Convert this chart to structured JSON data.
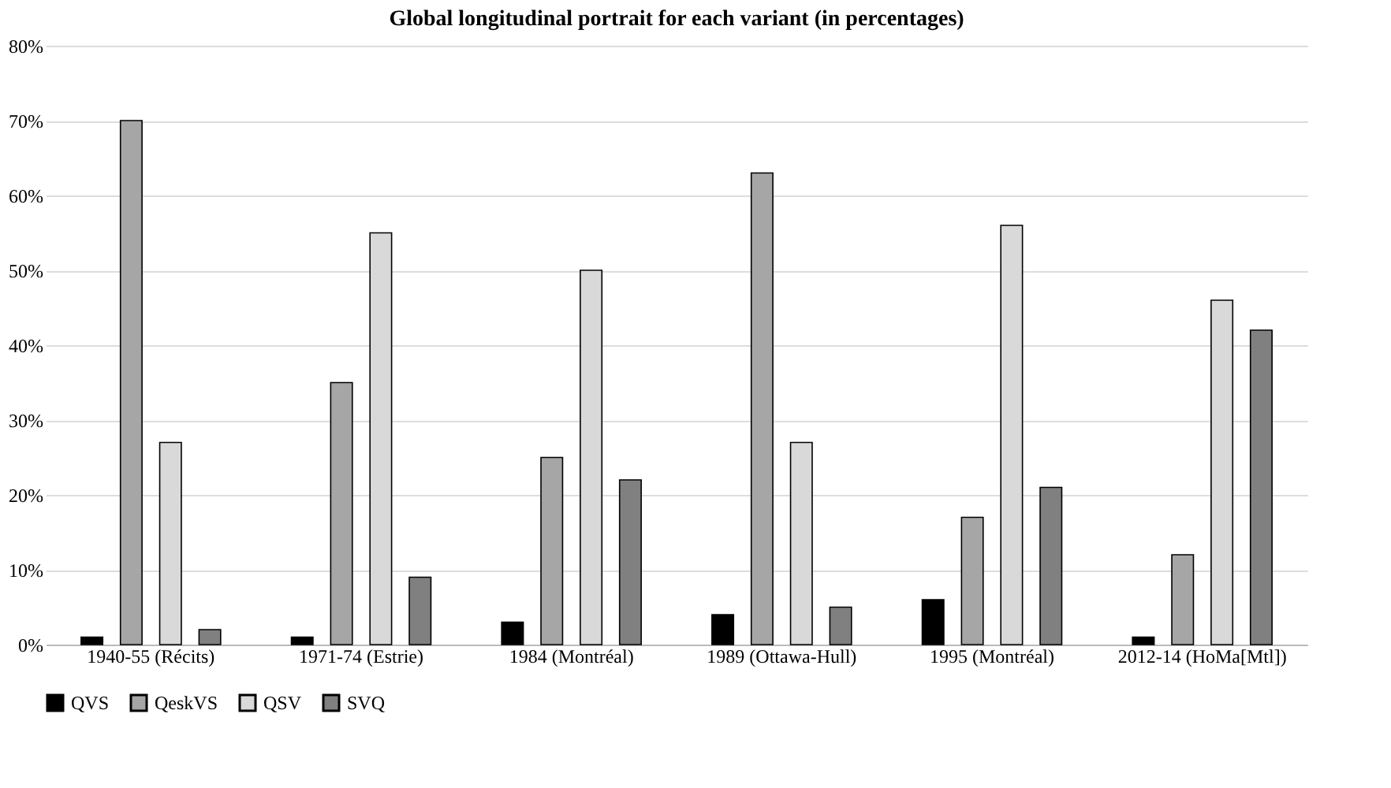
{
  "chart_data": {
    "type": "bar",
    "title": "Global longitudinal portrait for each variant (in percentages)",
    "categories": [
      "1940-55 (Récits)",
      "1971-74 (Estrie)",
      "1984 (Montréal)",
      "1989 (Ottawa-Hull)",
      "1995 (Montréal)",
      "2012-14 (HoMa[Mtl])"
    ],
    "series": [
      {
        "name": "QVS",
        "color": "#000000",
        "values": [
          1,
          1,
          3,
          4,
          6,
          1
        ]
      },
      {
        "name": "QeskVS",
        "color": "#a6a6a6",
        "values": [
          70,
          35,
          25,
          63,
          17,
          12
        ]
      },
      {
        "name": "QSV",
        "color": "#d9d9d9",
        "values": [
          27,
          55,
          50,
          27,
          56,
          46
        ]
      },
      {
        "name": "SVQ",
        "color": "#808080",
        "values": [
          2,
          9,
          22,
          5,
          21,
          42
        ]
      }
    ],
    "ylim": [
      0,
      80
    ],
    "yticks": [
      {
        "value": 0,
        "label": "0%"
      },
      {
        "value": 10,
        "label": "10%"
      },
      {
        "value": 20,
        "label": "20%"
      },
      {
        "value": 30,
        "label": "30%"
      },
      {
        "value": 40,
        "label": "40%"
      },
      {
        "value": 50,
        "label": "50%"
      },
      {
        "value": 60,
        "label": "60%"
      },
      {
        "value": 70,
        "label": "70%"
      },
      {
        "value": 80,
        "label": "80%"
      }
    ],
    "grid": "y",
    "legend": "bottom"
  }
}
